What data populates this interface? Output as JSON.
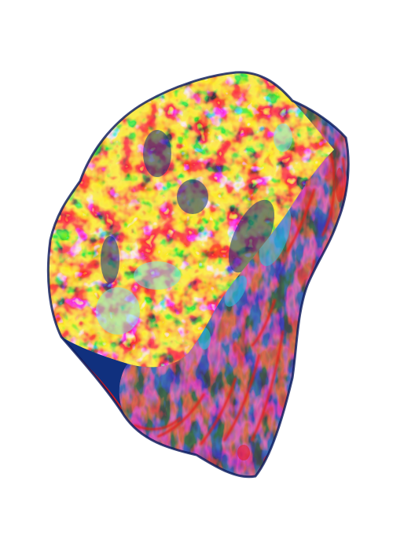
{
  "image": {
    "subject": "false-color-3d-rock-surface-render",
    "background_color": "#ffffff",
    "colors": {
      "deep_navy": "#0b1a5c",
      "dark_blue": "#10307e",
      "blue": "#1f6fd0",
      "cyan": "#27c7e6",
      "light_cyan": "#7fe4f0",
      "green": "#2fd46a",
      "yellow": "#f2e21c",
      "orange": "#f08a1a",
      "red": "#e41a14",
      "dark_red": "#6a0d0a",
      "black": "#0a0604"
    }
  }
}
